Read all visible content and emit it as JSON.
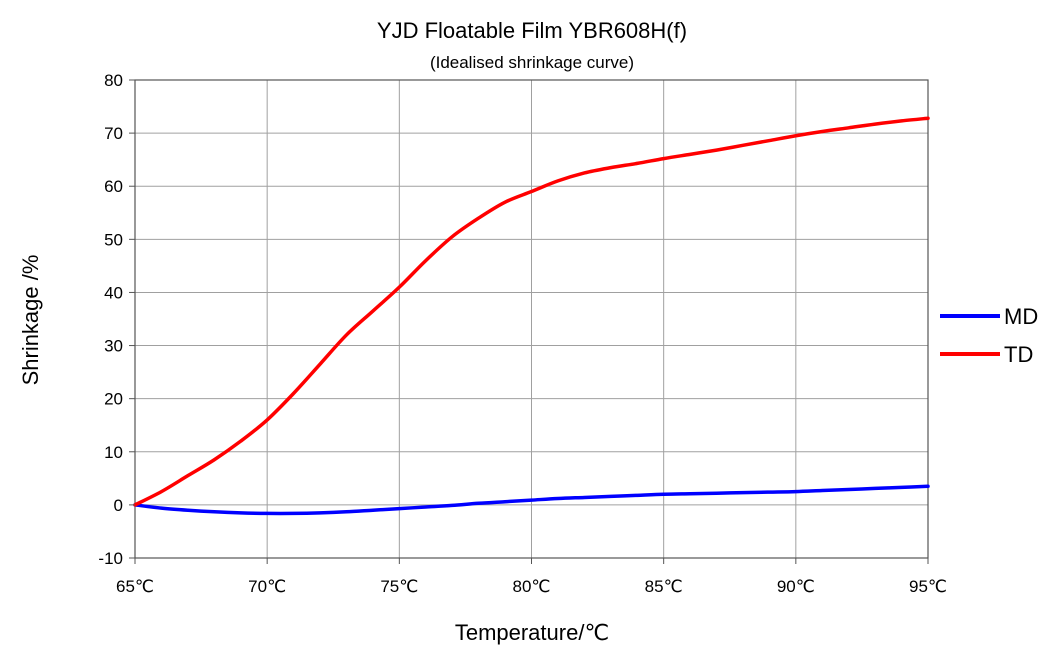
{
  "chart_data": {
    "type": "line",
    "title": "YJD Floatable  Film  YBR608H(f)",
    "subtitle": "(Idealised shrinkage curve)",
    "xlabel": "Temperature/℃",
    "ylabel": "Shrinkage /%",
    "xlim": [
      65,
      95
    ],
    "ylim": [
      -10,
      80
    ],
    "x_ticks": [
      65,
      70,
      75,
      80,
      85,
      90,
      95
    ],
    "x_tick_labels": [
      "65℃",
      "70℃",
      "75℃",
      "80℃",
      "85℃",
      "90℃",
      "95℃"
    ],
    "y_ticks": [
      -10,
      0,
      10,
      20,
      30,
      40,
      50,
      60,
      70,
      80
    ],
    "y_tick_labels": [
      "-10",
      "0",
      "10",
      "20",
      "30",
      "40",
      "50",
      "60",
      "70",
      "80"
    ],
    "grid": true,
    "legend_position": "right",
    "series": [
      {
        "name": "MD",
        "color": "#0000ff",
        "x": [
          65,
          66,
          67,
          68,
          69,
          70,
          71,
          72,
          73,
          74,
          75,
          76,
          77,
          78,
          79,
          80,
          81,
          82,
          83,
          84,
          85,
          86,
          87,
          88,
          89,
          90,
          91,
          92,
          93,
          94,
          95
        ],
        "y": [
          0,
          -0.6,
          -1.0,
          -1.3,
          -1.5,
          -1.6,
          -1.6,
          -1.5,
          -1.3,
          -1.0,
          -0.7,
          -0.4,
          -0.1,
          0.3,
          0.6,
          0.9,
          1.2,
          1.4,
          1.6,
          1.8,
          2.0,
          2.1,
          2.2,
          2.3,
          2.4,
          2.5,
          2.7,
          2.9,
          3.1,
          3.3,
          3.5
        ]
      },
      {
        "name": "TD",
        "color": "#ff0000",
        "x": [
          65,
          66,
          67,
          68,
          69,
          70,
          71,
          72,
          73,
          74,
          75,
          76,
          77,
          78,
          79,
          80,
          81,
          82,
          83,
          84,
          85,
          86,
          87,
          88,
          89,
          90,
          91,
          92,
          93,
          94,
          95
        ],
        "y": [
          0,
          2.5,
          5.5,
          8.5,
          12,
          16,
          21,
          26.5,
          32,
          36.5,
          41,
          46,
          50.5,
          54,
          57,
          59,
          61,
          62.5,
          63.5,
          64.3,
          65.2,
          66,
          66.8,
          67.7,
          68.6,
          69.5,
          70.3,
          71,
          71.7,
          72.3,
          72.8
        ]
      }
    ]
  }
}
